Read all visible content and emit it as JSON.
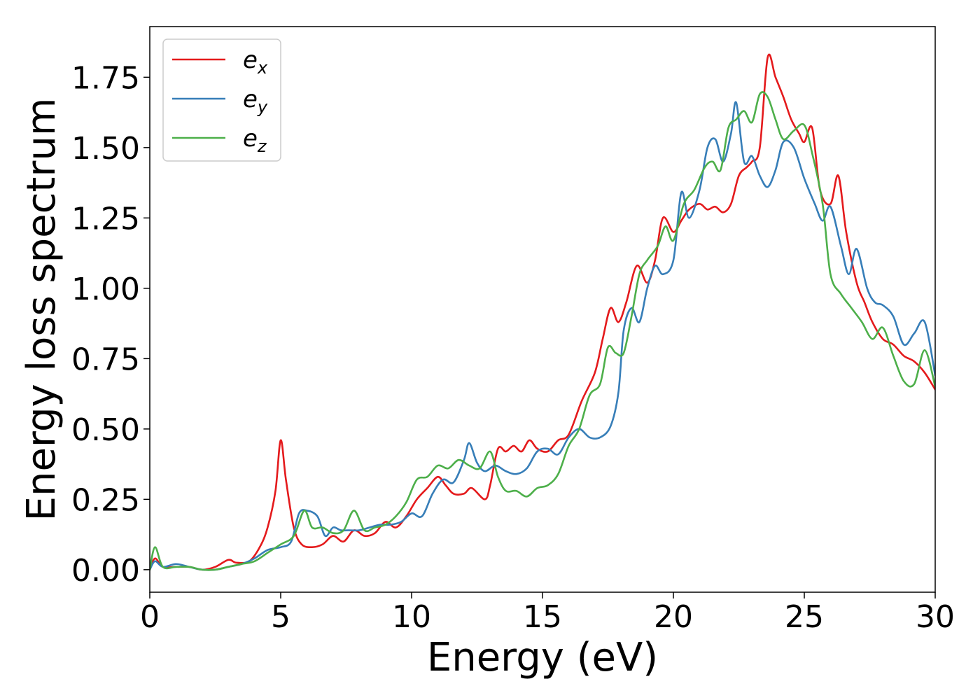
{
  "chart_data": {
    "type": "line",
    "title": "",
    "xlabel": "Energy (eV)",
    "ylabel": "Energy loss spectrum",
    "xlim": [
      0,
      30
    ],
    "ylim": [
      -0.08,
      1.93
    ],
    "xticks": [
      0,
      5,
      10,
      15,
      20,
      25,
      30
    ],
    "xtick_labels": [
      "0",
      "5",
      "10",
      "15",
      "20",
      "25",
      "30"
    ],
    "yticks": [
      0,
      0.25,
      0.5,
      0.75,
      1.0,
      1.25,
      1.5,
      1.75
    ],
    "ytick_labels": [
      "0.00",
      "0.25",
      "0.50",
      "0.75",
      "1.00",
      "1.25",
      "1.50",
      "1.75"
    ],
    "grid": false,
    "legend_position": "top-left",
    "series": [
      {
        "name": "e_x",
        "legend_base": "e",
        "legend_sub": "x",
        "color": "#e41a1c",
        "points": [
          [
            0,
            0
          ],
          [
            0.2,
            0.04
          ],
          [
            0.5,
            0.01
          ],
          [
            1,
            0.01
          ],
          [
            1.5,
            0.01
          ],
          [
            2,
            0.0
          ],
          [
            2.5,
            0.01
          ],
          [
            3.0,
            0.035
          ],
          [
            3.3,
            0.025
          ],
          [
            3.8,
            0.03
          ],
          [
            4.2,
            0.08
          ],
          [
            4.5,
            0.15
          ],
          [
            4.8,
            0.28
          ],
          [
            5.0,
            0.46
          ],
          [
            5.2,
            0.32
          ],
          [
            5.5,
            0.15
          ],
          [
            5.8,
            0.09
          ],
          [
            6.2,
            0.08
          ],
          [
            6.6,
            0.09
          ],
          [
            7.0,
            0.12
          ],
          [
            7.4,
            0.1
          ],
          [
            7.8,
            0.14
          ],
          [
            8.2,
            0.12
          ],
          [
            8.6,
            0.13
          ],
          [
            9.0,
            0.17
          ],
          [
            9.4,
            0.15
          ],
          [
            9.8,
            0.19
          ],
          [
            10.2,
            0.25
          ],
          [
            10.6,
            0.29
          ],
          [
            11.0,
            0.33
          ],
          [
            11.3,
            0.3
          ],
          [
            11.6,
            0.27
          ],
          [
            12.0,
            0.27
          ],
          [
            12.3,
            0.29
          ],
          [
            12.8,
            0.25
          ],
          [
            13.0,
            0.3
          ],
          [
            13.3,
            0.43
          ],
          [
            13.6,
            0.42
          ],
          [
            13.9,
            0.44
          ],
          [
            14.2,
            0.42
          ],
          [
            14.5,
            0.46
          ],
          [
            14.8,
            0.43
          ],
          [
            15.2,
            0.42
          ],
          [
            15.6,
            0.46
          ],
          [
            16.0,
            0.48
          ],
          [
            16.5,
            0.6
          ],
          [
            17.0,
            0.7
          ],
          [
            17.3,
            0.82
          ],
          [
            17.6,
            0.93
          ],
          [
            17.9,
            0.88
          ],
          [
            18.2,
            0.95
          ],
          [
            18.6,
            1.08
          ],
          [
            19.0,
            1.02
          ],
          [
            19.3,
            1.1
          ],
          [
            19.6,
            1.25
          ],
          [
            20.0,
            1.2
          ],
          [
            20.3,
            1.24
          ],
          [
            20.6,
            1.28
          ],
          [
            21.0,
            1.3
          ],
          [
            21.3,
            1.28
          ],
          [
            21.6,
            1.29
          ],
          [
            21.9,
            1.27
          ],
          [
            22.2,
            1.3
          ],
          [
            22.5,
            1.4
          ],
          [
            22.8,
            1.43
          ],
          [
            23.0,
            1.45
          ],
          [
            23.3,
            1.5
          ],
          [
            23.6,
            1.82
          ],
          [
            23.9,
            1.75
          ],
          [
            24.2,
            1.68
          ],
          [
            24.5,
            1.6
          ],
          [
            24.8,
            1.55
          ],
          [
            25.0,
            1.52
          ],
          [
            25.3,
            1.57
          ],
          [
            25.6,
            1.35
          ],
          [
            26.0,
            1.3
          ],
          [
            26.3,
            1.4
          ],
          [
            26.6,
            1.2
          ],
          [
            27.0,
            1.02
          ],
          [
            27.3,
            0.95
          ],
          [
            27.6,
            0.88
          ],
          [
            28.0,
            0.82
          ],
          [
            28.4,
            0.8
          ],
          [
            28.8,
            0.76
          ],
          [
            29.2,
            0.74
          ],
          [
            29.6,
            0.7
          ],
          [
            30.0,
            0.64
          ]
        ]
      },
      {
        "name": "e_y",
        "legend_base": "e",
        "legend_sub": "y",
        "color": "#377eb8",
        "points": [
          [
            0,
            0
          ],
          [
            0.2,
            0.03
          ],
          [
            0.5,
            0.01
          ],
          [
            1,
            0.02
          ],
          [
            1.5,
            0.01
          ],
          [
            2,
            0.0
          ],
          [
            2.5,
            0.0
          ],
          [
            3.0,
            0.01
          ],
          [
            3.5,
            0.02
          ],
          [
            4.0,
            0.04
          ],
          [
            4.5,
            0.07
          ],
          [
            5.0,
            0.08
          ],
          [
            5.4,
            0.1
          ],
          [
            5.7,
            0.2
          ],
          [
            6.0,
            0.21
          ],
          [
            6.4,
            0.19
          ],
          [
            6.7,
            0.12
          ],
          [
            7.0,
            0.15
          ],
          [
            7.3,
            0.14
          ],
          [
            7.6,
            0.14
          ],
          [
            8.0,
            0.14
          ],
          [
            8.4,
            0.15
          ],
          [
            8.8,
            0.16
          ],
          [
            9.2,
            0.16
          ],
          [
            9.6,
            0.17
          ],
          [
            10.0,
            0.2
          ],
          [
            10.4,
            0.19
          ],
          [
            10.8,
            0.27
          ],
          [
            11.2,
            0.32
          ],
          [
            11.6,
            0.31
          ],
          [
            12.0,
            0.39
          ],
          [
            12.2,
            0.45
          ],
          [
            12.5,
            0.38
          ],
          [
            12.8,
            0.35
          ],
          [
            13.2,
            0.37
          ],
          [
            13.6,
            0.35
          ],
          [
            14.0,
            0.34
          ],
          [
            14.4,
            0.36
          ],
          [
            14.8,
            0.42
          ],
          [
            15.2,
            0.43
          ],
          [
            15.6,
            0.41
          ],
          [
            16.0,
            0.47
          ],
          [
            16.4,
            0.5
          ],
          [
            16.8,
            0.47
          ],
          [
            17.2,
            0.47
          ],
          [
            17.6,
            0.51
          ],
          [
            17.9,
            0.63
          ],
          [
            18.1,
            0.85
          ],
          [
            18.4,
            0.93
          ],
          [
            18.7,
            0.88
          ],
          [
            19.0,
            1.0
          ],
          [
            19.3,
            1.08
          ],
          [
            19.6,
            1.05
          ],
          [
            20.0,
            1.1
          ],
          [
            20.3,
            1.34
          ],
          [
            20.6,
            1.25
          ],
          [
            21.0,
            1.35
          ],
          [
            21.3,
            1.5
          ],
          [
            21.6,
            1.53
          ],
          [
            21.9,
            1.45
          ],
          [
            22.2,
            1.55
          ],
          [
            22.4,
            1.66
          ],
          [
            22.7,
            1.45
          ],
          [
            23.0,
            1.47
          ],
          [
            23.3,
            1.4
          ],
          [
            23.6,
            1.36
          ],
          [
            23.9,
            1.42
          ],
          [
            24.2,
            1.52
          ],
          [
            24.6,
            1.5
          ],
          [
            25.0,
            1.39
          ],
          [
            25.4,
            1.3
          ],
          [
            25.7,
            1.24
          ],
          [
            26.0,
            1.29
          ],
          [
            26.4,
            1.15
          ],
          [
            26.7,
            1.05
          ],
          [
            27.0,
            1.14
          ],
          [
            27.4,
            1.0
          ],
          [
            27.7,
            0.95
          ],
          [
            28.0,
            0.94
          ],
          [
            28.4,
            0.9
          ],
          [
            28.8,
            0.8
          ],
          [
            29.2,
            0.84
          ],
          [
            29.6,
            0.88
          ],
          [
            30.0,
            0.69
          ]
        ]
      },
      {
        "name": "e_z",
        "legend_base": "e",
        "legend_sub": "z",
        "color": "#4daf4a",
        "points": [
          [
            0,
            0
          ],
          [
            0.2,
            0.08
          ],
          [
            0.5,
            0.01
          ],
          [
            1,
            0.01
          ],
          [
            1.5,
            0.01
          ],
          [
            2,
            0.0
          ],
          [
            2.5,
            0.0
          ],
          [
            3.0,
            0.01
          ],
          [
            3.5,
            0.02
          ],
          [
            4.0,
            0.03
          ],
          [
            4.5,
            0.06
          ],
          [
            5.0,
            0.09
          ],
          [
            5.5,
            0.12
          ],
          [
            5.9,
            0.21
          ],
          [
            6.2,
            0.15
          ],
          [
            6.6,
            0.15
          ],
          [
            7.0,
            0.13
          ],
          [
            7.4,
            0.14
          ],
          [
            7.8,
            0.21
          ],
          [
            8.2,
            0.14
          ],
          [
            8.6,
            0.15
          ],
          [
            9.0,
            0.16
          ],
          [
            9.4,
            0.19
          ],
          [
            9.8,
            0.24
          ],
          [
            10.2,
            0.32
          ],
          [
            10.6,
            0.33
          ],
          [
            11.0,
            0.37
          ],
          [
            11.4,
            0.36
          ],
          [
            11.8,
            0.39
          ],
          [
            12.2,
            0.37
          ],
          [
            12.6,
            0.36
          ],
          [
            13.0,
            0.42
          ],
          [
            13.3,
            0.33
          ],
          [
            13.6,
            0.28
          ],
          [
            14.0,
            0.28
          ],
          [
            14.4,
            0.26
          ],
          [
            14.8,
            0.29
          ],
          [
            15.2,
            0.3
          ],
          [
            15.6,
            0.34
          ],
          [
            16.0,
            0.44
          ],
          [
            16.4,
            0.5
          ],
          [
            16.8,
            0.62
          ],
          [
            17.2,
            0.66
          ],
          [
            17.5,
            0.79
          ],
          [
            17.8,
            0.77
          ],
          [
            18.1,
            0.77
          ],
          [
            18.4,
            0.9
          ],
          [
            18.7,
            1.05
          ],
          [
            19.0,
            1.1
          ],
          [
            19.4,
            1.15
          ],
          [
            19.7,
            1.22
          ],
          [
            20.0,
            1.17
          ],
          [
            20.4,
            1.3
          ],
          [
            20.8,
            1.35
          ],
          [
            21.2,
            1.43
          ],
          [
            21.5,
            1.45
          ],
          [
            21.8,
            1.42
          ],
          [
            22.1,
            1.57
          ],
          [
            22.4,
            1.6
          ],
          [
            22.7,
            1.63
          ],
          [
            23.0,
            1.59
          ],
          [
            23.3,
            1.69
          ],
          [
            23.6,
            1.68
          ],
          [
            23.9,
            1.6
          ],
          [
            24.2,
            1.53
          ],
          [
            24.6,
            1.56
          ],
          [
            25.0,
            1.58
          ],
          [
            25.3,
            1.48
          ],
          [
            25.7,
            1.3
          ],
          [
            26.0,
            1.05
          ],
          [
            26.4,
            0.98
          ],
          [
            26.8,
            0.93
          ],
          [
            27.2,
            0.88
          ],
          [
            27.6,
            0.82
          ],
          [
            28.0,
            0.86
          ],
          [
            28.4,
            0.76
          ],
          [
            28.8,
            0.67
          ],
          [
            29.2,
            0.66
          ],
          [
            29.6,
            0.78
          ],
          [
            30.0,
            0.65
          ]
        ]
      }
    ]
  }
}
